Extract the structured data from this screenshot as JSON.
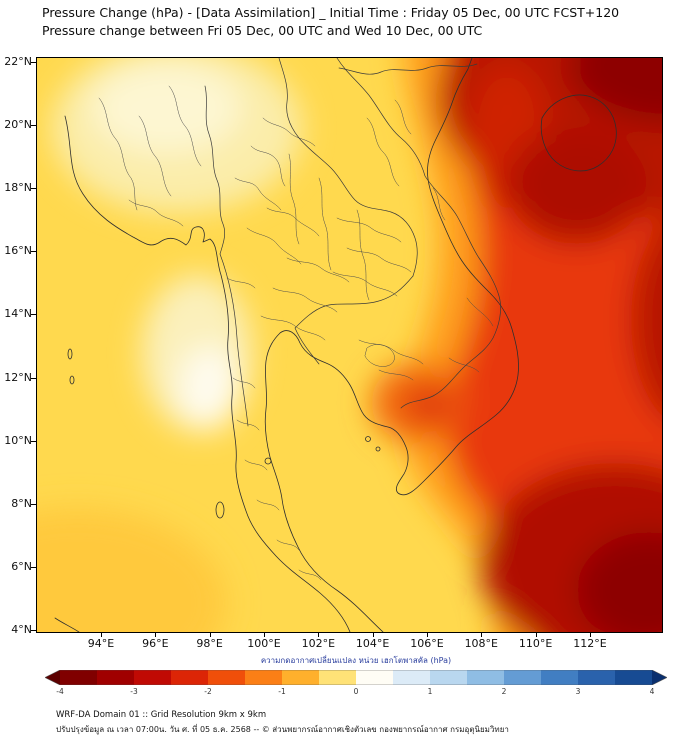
{
  "title": {
    "line1": "Pressure Change (hPa) - [Data Assimilation] _ Initial Time : Friday 05 Dec, 00 UTC FCST+120",
    "line2": "Pressure change between Fri 05 Dec, 00 UTC and Wed 10 Dec, 00 UTC"
  },
  "map": {
    "y_ticks": [
      "22°N",
      "20°N",
      "18°N",
      "16°N",
      "14°N",
      "12°N",
      "10°N",
      "8°N",
      "6°N",
      "4°N"
    ],
    "x_ticks": [
      "94°E",
      "96°E",
      "98°E",
      "100°E",
      "102°E",
      "104°E",
      "106°E",
      "108°E",
      "110°E",
      "112°E"
    ],
    "field_colors": {
      "base_yellow": "#ffd94e",
      "pale_white": "#fefbee",
      "orange": "#ff9e1b",
      "red": "#e8380c",
      "dark_red": "#b01104",
      "maroon": "#8d0404"
    }
  },
  "colorbar": {
    "label": "ความกดอากาศเปลี่ยนแปลง หน่วย เฮกโตพาสคัล (hPa)",
    "tick_labels": [
      "-4",
      "-3",
      "-2",
      "-1",
      "0",
      "1",
      "2",
      "3",
      "4"
    ],
    "left_arrow_color": "#5c0000",
    "right_arrow_color": "#0a2f6e",
    "segment_colors": [
      "#800000",
      "#a00000",
      "#c00a04",
      "#dc2506",
      "#f04f0a",
      "#fb7f16",
      "#ffb02c",
      "#ffe277",
      "#fffdf5",
      "#dcebf7",
      "#b9d7ef",
      "#8fbde4",
      "#649cd4",
      "#417ec2",
      "#2a62ac",
      "#174b93"
    ]
  },
  "footer": {
    "line1": "WRF-DA Domain 01 :: Grid Resolution 9km x 9km",
    "line2": "ปรับปรุงข้อมูล ณ เวลา 07:00น. วัน ศ. ที่ 05 ธ.ค. 2568 -- © ส่วนพยากรณ์อากาศเชิงตัวเลข กองพยากรณ์อากาศ กรมอุตุนิยมวิทยา"
  }
}
